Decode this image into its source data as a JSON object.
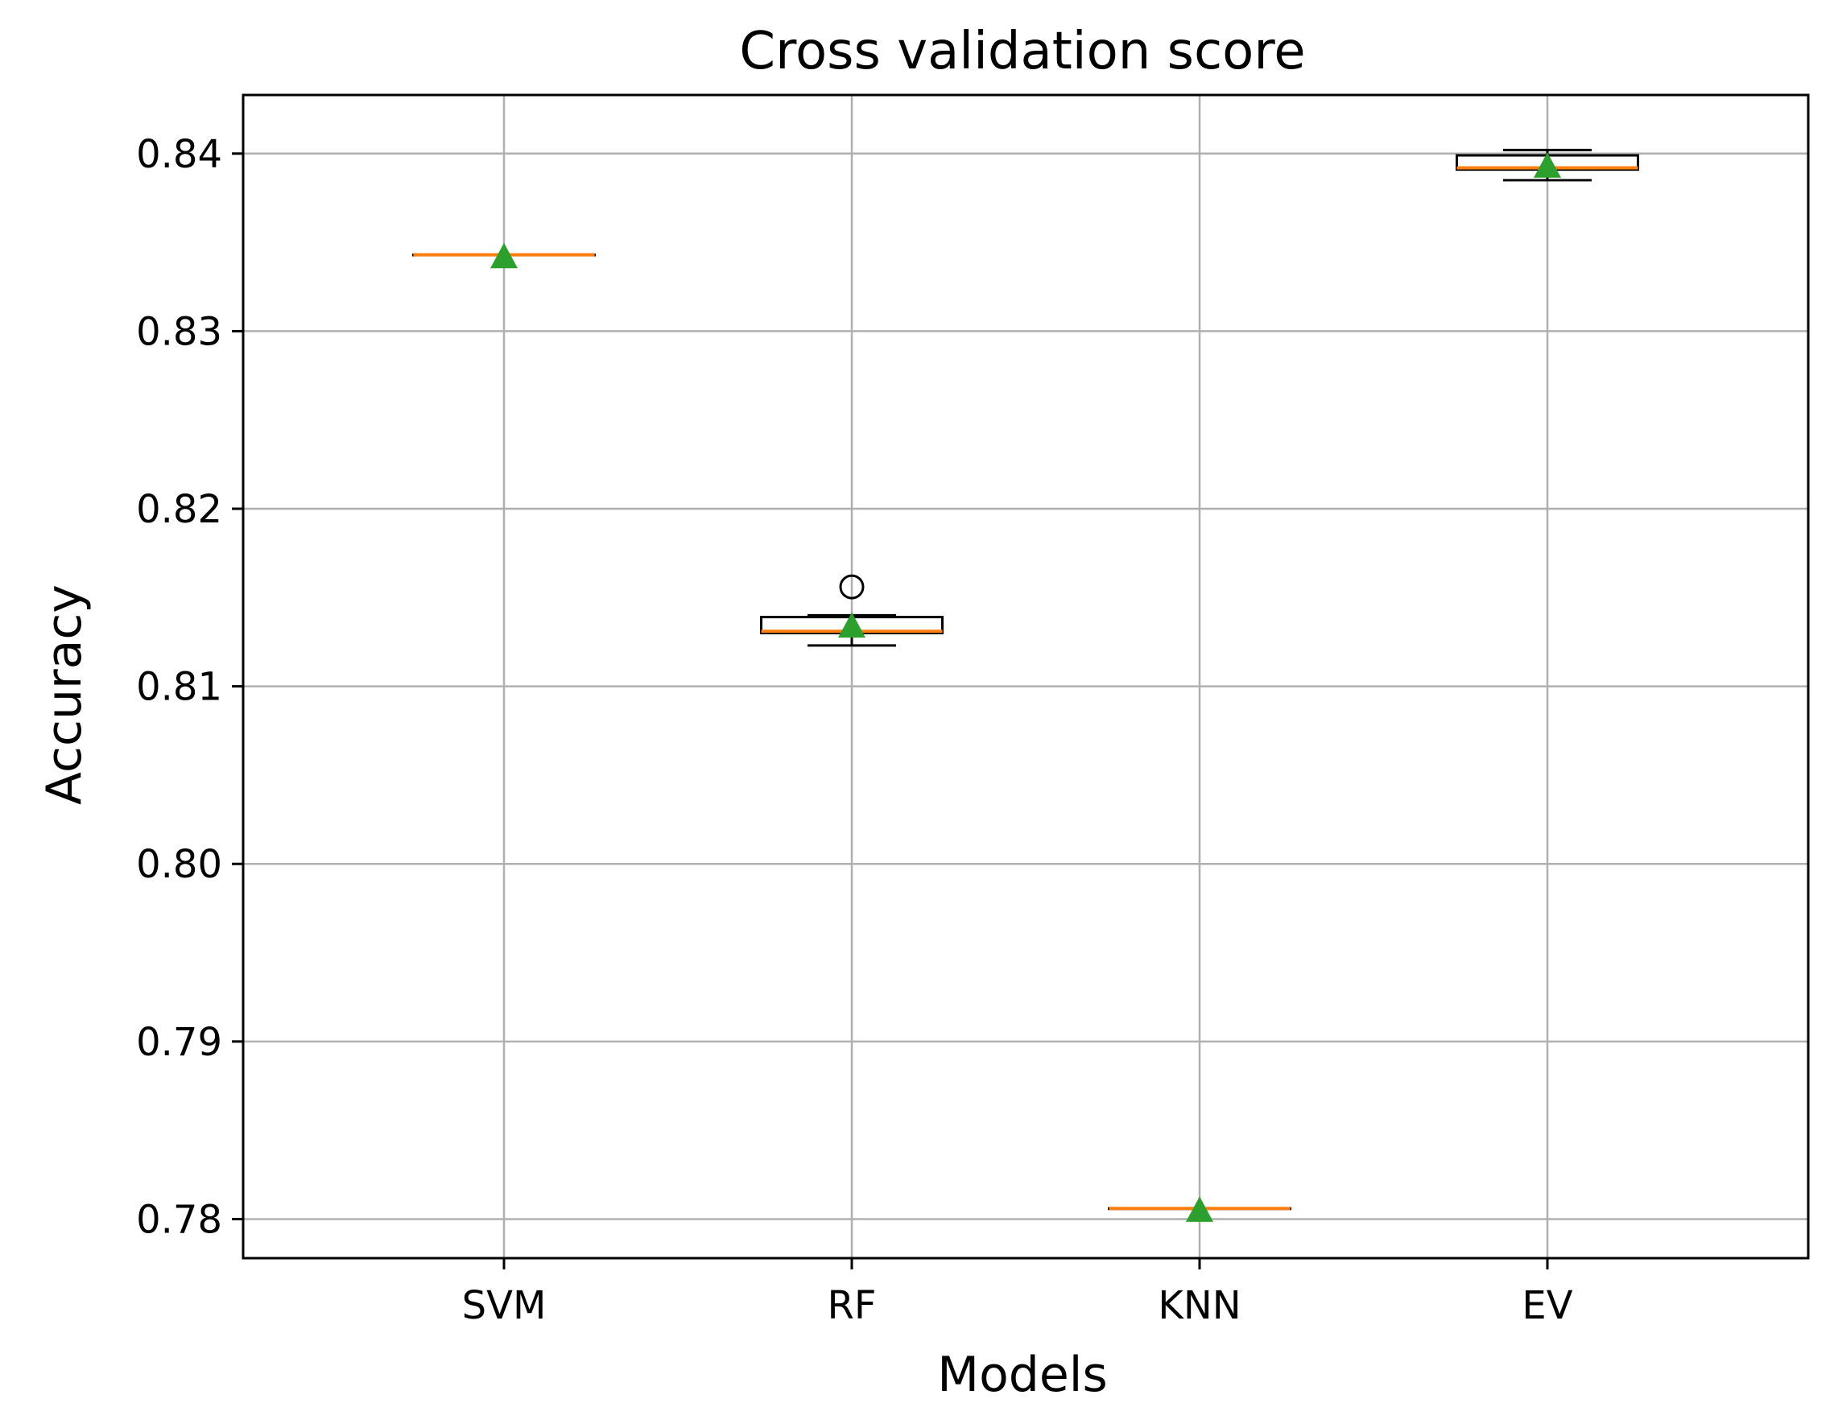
{
  "chart_data": {
    "type": "box",
    "title": "Cross validation score",
    "xlabel": "Models",
    "ylabel": "Accuracy",
    "categories": [
      "SVM",
      "RF",
      "KNN",
      "EV"
    ],
    "ylim": [
      0.7778,
      0.8433
    ],
    "yticks": [
      0.78,
      0.79,
      0.8,
      0.81,
      0.82,
      0.83,
      0.84
    ],
    "ytick_labels": [
      "0.78",
      "0.79",
      "0.80",
      "0.81",
      "0.82",
      "0.83",
      "0.84"
    ],
    "grid": true,
    "boxes": [
      {
        "label": "SVM",
        "whisker_low": 0.8343,
        "q1": 0.8343,
        "median": 0.8343,
        "q3": 0.8343,
        "whisker_high": 0.8343,
        "mean": 0.8342,
        "fliers": []
      },
      {
        "label": "RF",
        "whisker_low": 0.8123,
        "q1": 0.813,
        "median": 0.8131,
        "q3": 0.8139,
        "whisker_high": 0.814,
        "mean": 0.8134,
        "fliers": [
          0.8156
        ]
      },
      {
        "label": "KNN",
        "whisker_low": 0.7806,
        "q1": 0.7806,
        "median": 0.7806,
        "q3": 0.7806,
        "whisker_high": 0.7806,
        "mean": 0.7805,
        "fliers": []
      },
      {
        "label": "EV",
        "whisker_low": 0.8385,
        "q1": 0.8391,
        "median": 0.8392,
        "q3": 0.8399,
        "whisker_high": 0.8402,
        "mean": 0.8393,
        "fliers": []
      }
    ],
    "colors": {
      "box": "#000000",
      "median": "#ff7f0e",
      "mean": "#2ca02c",
      "grid": "#b0b0b0",
      "flier": "#000000"
    }
  }
}
